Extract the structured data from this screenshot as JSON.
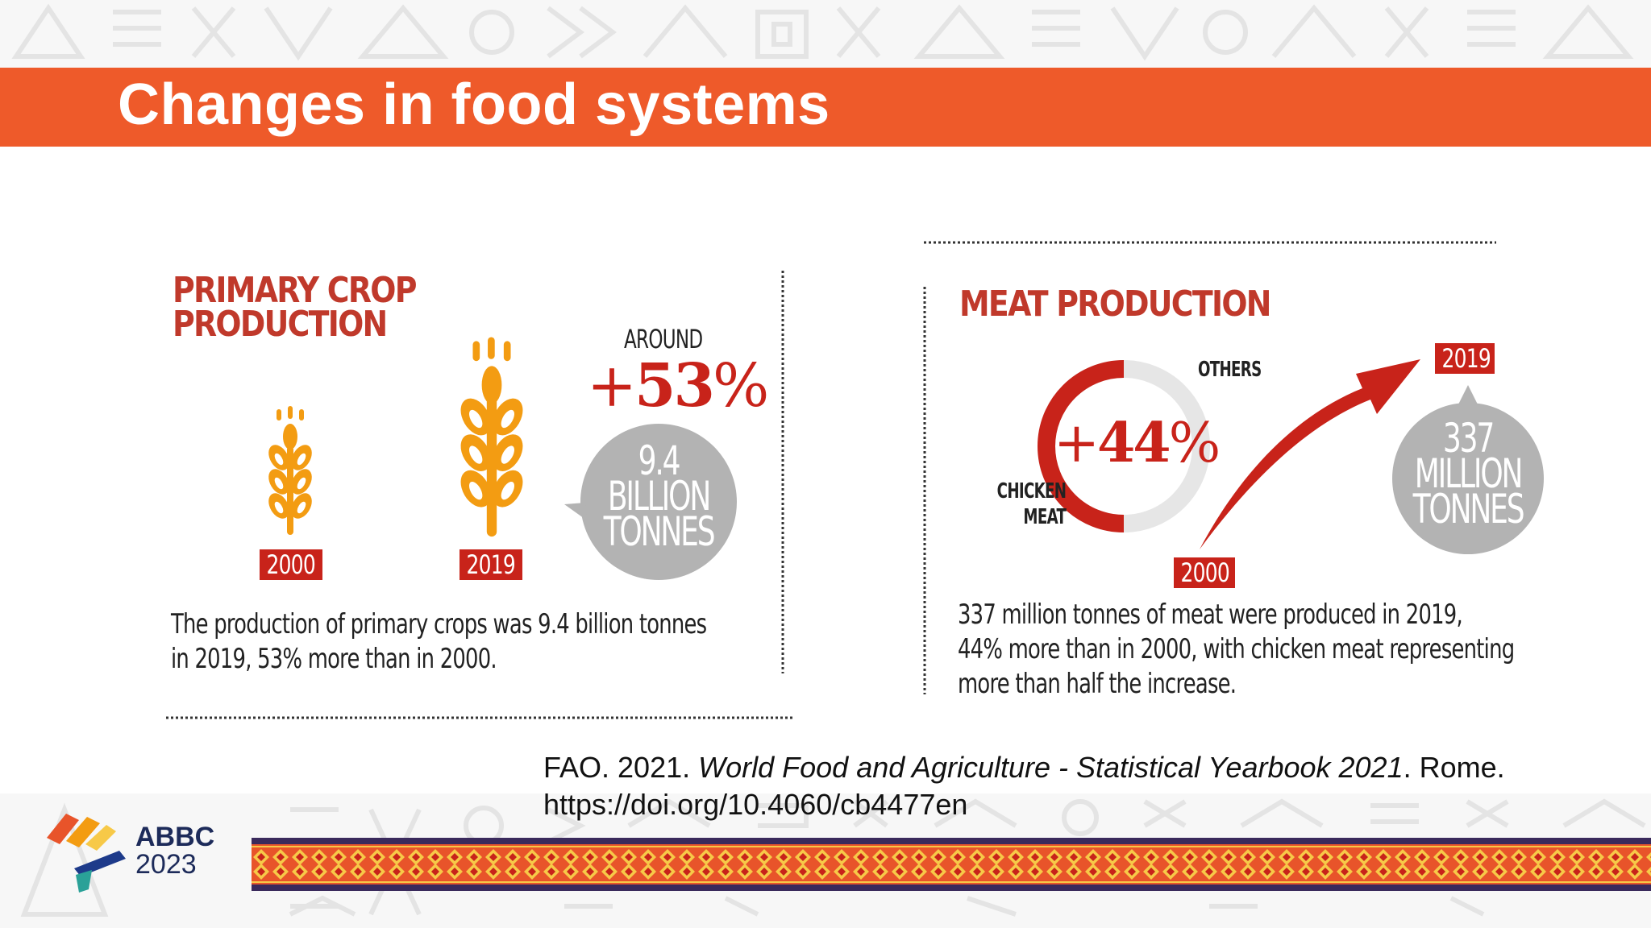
{
  "slide": {
    "title": "Changes in food systems"
  },
  "crop_panel": {
    "heading_line1": "PRIMARY CROP",
    "heading_line2": "PRODUCTION",
    "year_start": "2000",
    "year_end": "2019",
    "around_label": "AROUND",
    "change_sign": "+",
    "change_value": "53",
    "change_unit": "%",
    "bubble_line1": "9.4",
    "bubble_line2": "BILLION",
    "bubble_line3": "TONNES",
    "description_line1": "The production of primary crops was 9.4 billion tonnes",
    "description_line2": "in 2019, 53% more than in 2000."
  },
  "meat_panel": {
    "heading": "MEAT PRODUCTION",
    "donut_label_others": "OTHERS",
    "donut_label_chicken_line1": "CHICKEN",
    "donut_label_chicken_line2": "MEAT",
    "change_sign": "+",
    "change_value": "44",
    "change_unit": "%",
    "year_start": "2000",
    "year_end": "2019",
    "bubble_line1": "337",
    "bubble_line2": "MILLION",
    "bubble_line3": "TONNES",
    "description_line1": "337 million tonnes of meat were produced in 2019,",
    "description_line2": "44% more than in 2000, with chicken meat representing",
    "description_line3": "more than half the increase."
  },
  "citation": {
    "prefix": "FAO. 2021. ",
    "title": "World Food and Agriculture - Statistical Yearbook 2021",
    "suffix": ". Rome.",
    "url": "https://doi.org/10.4060/cb4477en"
  },
  "footer": {
    "logo_line1": "ABBC",
    "logo_line2": "2023"
  },
  "colors": {
    "title_bar": "#ee5a2a",
    "accent_red": "#c8231a",
    "heading_red": "#c0392b",
    "wheat_orange": "#f39c12",
    "bubble_gray": "#b3b3b3",
    "donut_gray": "#e6e6e6"
  },
  "icons": [
    "wheat-icon",
    "growth-arrow-icon",
    "abbc-logo-icon"
  ]
}
